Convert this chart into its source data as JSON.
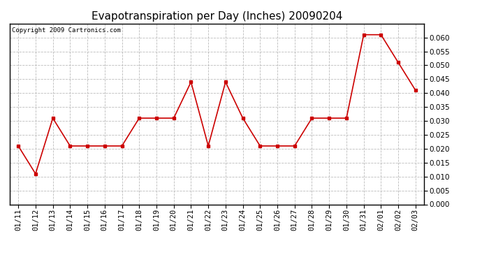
{
  "title": "Evapotranspiration per Day (Inches) 20090204",
  "copyright_text": "Copyright 2009 Cartronics.com",
  "x_labels": [
    "01/11",
    "01/12",
    "01/13",
    "01/14",
    "01/15",
    "01/16",
    "01/17",
    "01/18",
    "01/19",
    "01/20",
    "01/21",
    "01/22",
    "01/23",
    "01/24",
    "01/25",
    "01/26",
    "01/27",
    "01/28",
    "01/29",
    "01/30",
    "01/31",
    "02/01",
    "02/02",
    "02/03"
  ],
  "y_values": [
    0.021,
    0.011,
    0.031,
    0.021,
    0.021,
    0.021,
    0.021,
    0.031,
    0.031,
    0.031,
    0.044,
    0.021,
    0.044,
    0.031,
    0.021,
    0.021,
    0.021,
    0.031,
    0.031,
    0.031,
    0.061,
    0.061,
    0.051,
    0.041
  ],
  "line_color": "#cc0000",
  "marker": "s",
  "marker_size": 3,
  "ylim": [
    0.0,
    0.065
  ],
  "ytick_min": 0.0,
  "ytick_max": 0.06,
  "ytick_step": 0.005,
  "grid_color": "#bbbbbb",
  "grid_linestyle": "--",
  "background_color": "#ffffff",
  "title_fontsize": 11,
  "copyright_fontsize": 6.5,
  "tick_fontsize": 7.5
}
